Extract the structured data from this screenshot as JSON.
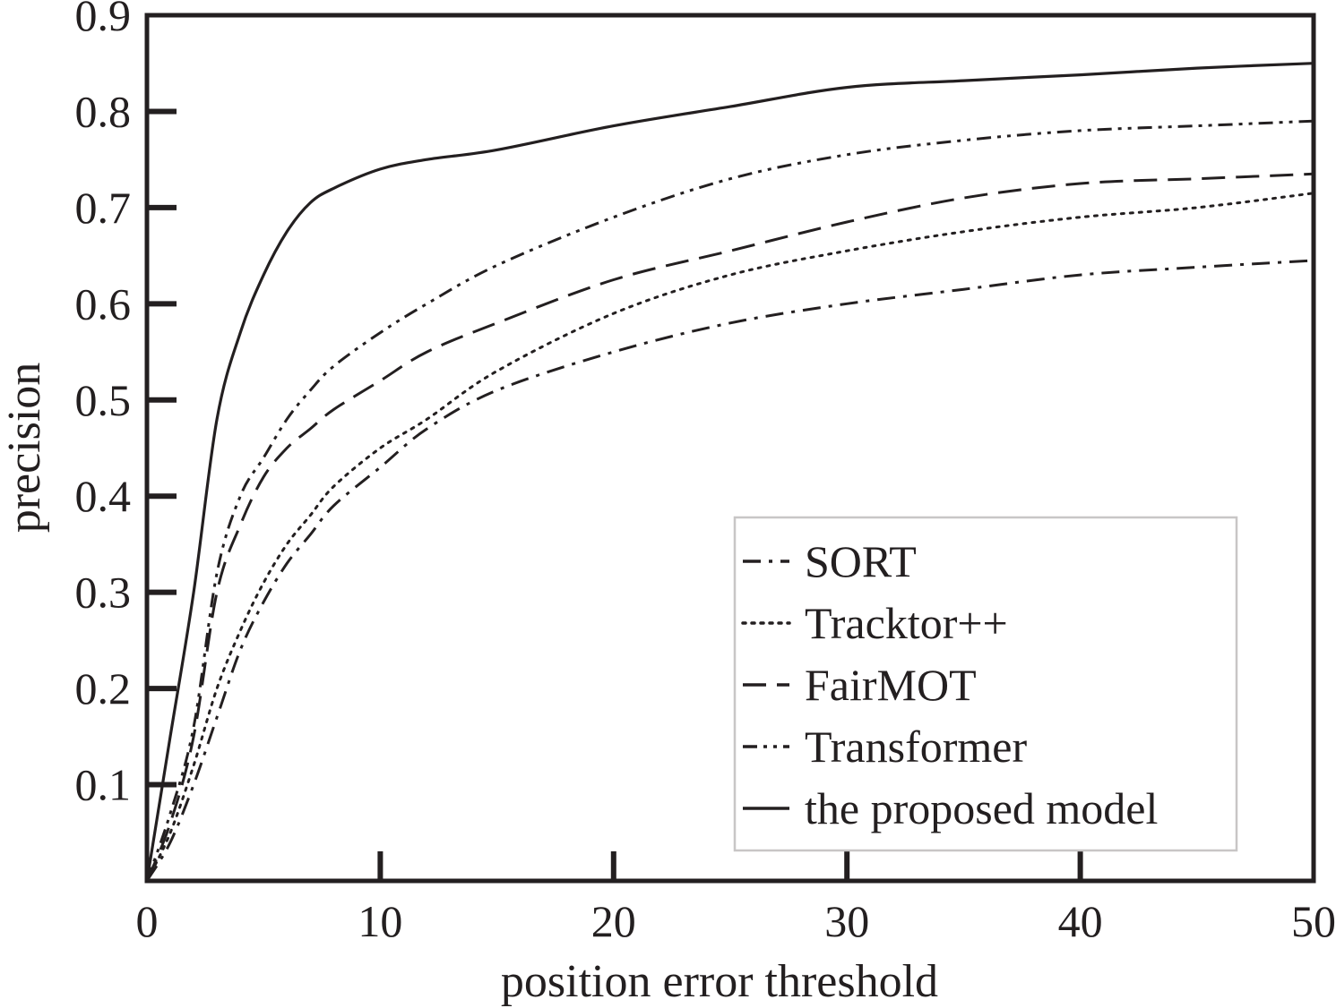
{
  "chart_data": {
    "type": "line",
    "title": "",
    "xlabel": "position error threshold",
    "ylabel": "precision",
    "xlim": [
      0,
      50
    ],
    "ylim": [
      0,
      0.9
    ],
    "xticks": [
      0,
      10,
      20,
      30,
      40,
      50
    ],
    "xtick_labels": [
      "0",
      "10",
      "20",
      "30",
      "40",
      "50"
    ],
    "yticks": [
      0.1,
      0.2,
      0.3,
      0.4,
      0.5,
      0.6,
      0.7,
      0.8,
      0.9
    ],
    "ytick_labels": [
      "0.1",
      "0.2",
      "0.3",
      "0.4",
      "0.5",
      "0.6",
      "0.7",
      "0.8",
      "0.9"
    ],
    "grid": false,
    "legend_position": "bottom-right",
    "x": [
      0,
      1,
      2,
      3,
      4,
      5,
      6,
      7,
      8,
      10,
      12,
      15,
      20,
      25,
      30,
      35,
      40,
      45,
      50
    ],
    "series": [
      {
        "name": "SORT",
        "style": "dashdot",
        "color": "#231f20",
        "values": [
          0,
          0.04,
          0.1,
          0.17,
          0.24,
          0.29,
          0.33,
          0.36,
          0.39,
          0.43,
          0.47,
          0.51,
          0.55,
          0.58,
          0.6,
          0.615,
          0.63,
          0.638,
          0.645
        ]
      },
      {
        "name": "Tracktor++",
        "style": "dotted",
        "color": "#231f20",
        "values": [
          0,
          0.05,
          0.12,
          0.2,
          0.26,
          0.31,
          0.35,
          0.38,
          0.41,
          0.45,
          0.48,
          0.53,
          0.59,
          0.63,
          0.655,
          0.675,
          0.69,
          0.7,
          0.715
        ]
      },
      {
        "name": "FairMOT",
        "style": "dashed",
        "color": "#231f20",
        "values": [
          0,
          0.06,
          0.15,
          0.3,
          0.37,
          0.42,
          0.45,
          0.47,
          0.49,
          0.52,
          0.55,
          0.58,
          0.625,
          0.655,
          0.685,
          0.71,
          0.725,
          0.73,
          0.735
        ]
      },
      {
        "name": "Transformer",
        "style": "dashdotdot",
        "color": "#231f20",
        "values": [
          0,
          0.07,
          0.16,
          0.32,
          0.4,
          0.44,
          0.48,
          0.51,
          0.535,
          0.57,
          0.6,
          0.64,
          0.69,
          0.73,
          0.755,
          0.77,
          0.78,
          0.785,
          0.79
        ]
      },
      {
        "name": "the proposed model",
        "style": "solid",
        "color": "#231f20",
        "values": [
          0,
          0.15,
          0.3,
          0.48,
          0.57,
          0.63,
          0.675,
          0.705,
          0.72,
          0.74,
          0.75,
          0.76,
          0.785,
          0.805,
          0.825,
          0.832,
          0.838,
          0.845,
          0.85
        ]
      }
    ]
  }
}
